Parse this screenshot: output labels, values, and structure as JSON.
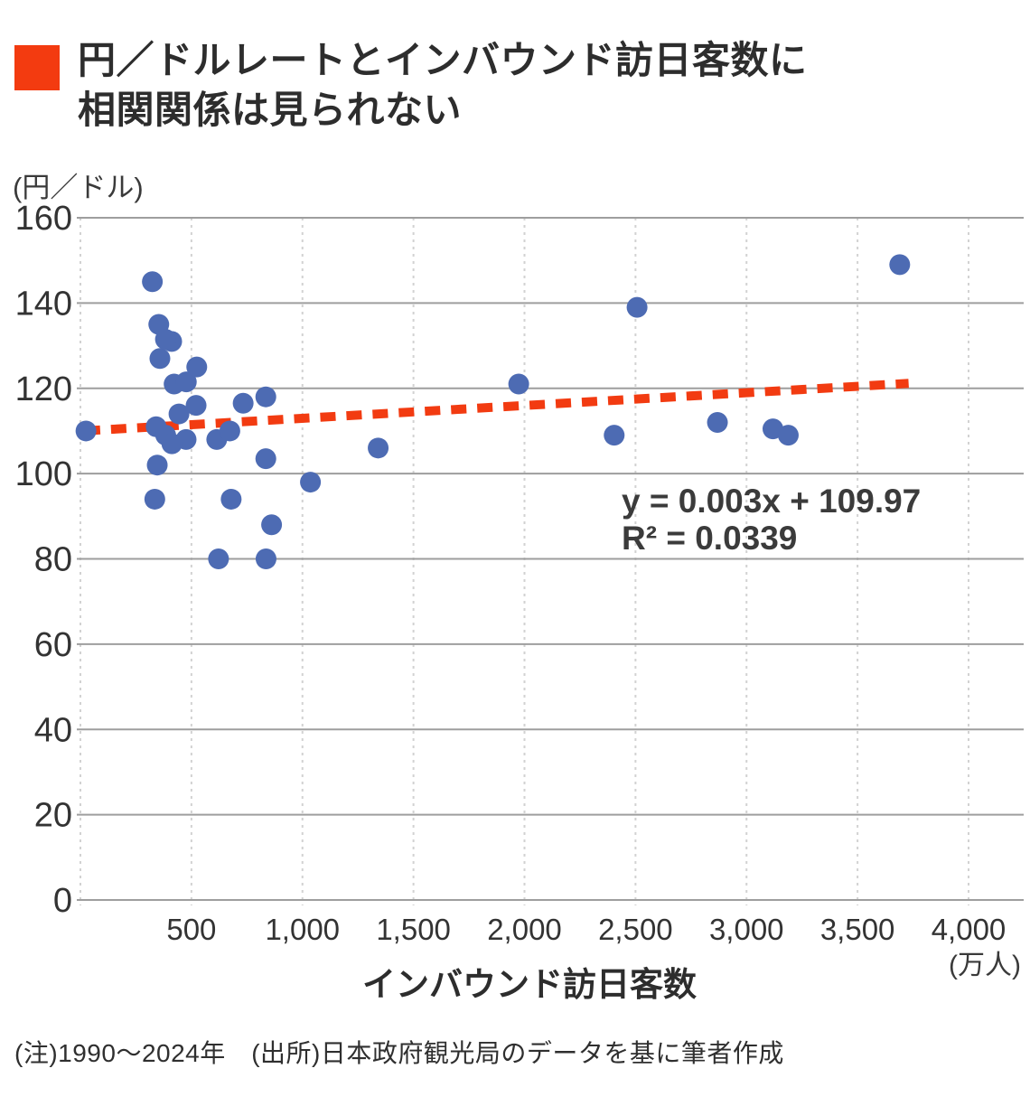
{
  "title": {
    "line1": "円／ドルレートとインバウンド訪日客数に",
    "line2": "相関関係は見られない"
  },
  "footnote": "(注)1990〜2024年　(出所)日本政府観光局のデータを基に筆者作成",
  "colors": {
    "accent_orange": "#f33b10",
    "dot_blue": "#4d6bb3",
    "trend_red": "#f23b11",
    "grid_solid": "#9e9e9e",
    "grid_dashed": "#d2d2d2",
    "text_dark": "#333333",
    "annotation_text": "#3b3b3b"
  },
  "chart_data": {
    "type": "scatter",
    "title": "円／ドルレートとインバウンド訪日客数に相関関係は見られない",
    "xlabel": "インバウンド訪日客数",
    "x_unit_label": "(万人)",
    "y_unit_label": "(円／ドル)",
    "xlim": [
      0,
      4000
    ],
    "ylim": [
      0,
      160
    ],
    "grid": true,
    "x_ticks": [
      {
        "value": 500,
        "label": "500"
      },
      {
        "value": 1000,
        "label": "1,000"
      },
      {
        "value": 1500,
        "label": "1,500"
      },
      {
        "value": 2000,
        "label": "2,000"
      },
      {
        "value": 2500,
        "label": "2,500"
      },
      {
        "value": 3000,
        "label": "3,000"
      },
      {
        "value": 3500,
        "label": "3,500"
      },
      {
        "value": 4000,
        "label": "4,000"
      }
    ],
    "y_ticks": [
      {
        "value": 0,
        "label": "0"
      },
      {
        "value": 20,
        "label": "20"
      },
      {
        "value": 40,
        "label": "40"
      },
      {
        "value": 60,
        "label": "60"
      },
      {
        "value": 80,
        "label": "80"
      },
      {
        "value": 100,
        "label": "100"
      },
      {
        "value": 120,
        "label": "120"
      },
      {
        "value": 140,
        "label": "140"
      },
      {
        "value": 160,
        "label": "160"
      }
    ],
    "points": [
      {
        "x": 324,
        "y": 145
      },
      {
        "x": 353,
        "y": 135
      },
      {
        "x": 358,
        "y": 127
      },
      {
        "x": 341,
        "y": 111
      },
      {
        "x": 346,
        "y": 102
      },
      {
        "x": 335,
        "y": 94
      },
      {
        "x": 384,
        "y": 109
      },
      {
        "x": 422,
        "y": 121
      },
      {
        "x": 411,
        "y": 131
      },
      {
        "x": 444,
        "y": 114
      },
      {
        "x": 476,
        "y": 108
      },
      {
        "x": 477,
        "y": 121.5
      },
      {
        "x": 524,
        "y": 125
      },
      {
        "x": 521,
        "y": 116
      },
      {
        "x": 614,
        "y": 108
      },
      {
        "x": 673,
        "y": 110
      },
      {
        "x": 733,
        "y": 116.5
      },
      {
        "x": 835,
        "y": 118
      },
      {
        "x": 835,
        "y": 103.5
      },
      {
        "x": 679,
        "y": 94
      },
      {
        "x": 861,
        "y": 88
      },
      {
        "x": 622,
        "y": 80
      },
      {
        "x": 836,
        "y": 80
      },
      {
        "x": 1036,
        "y": 98
      },
      {
        "x": 1341,
        "y": 106
      },
      {
        "x": 1974,
        "y": 121
      },
      {
        "x": 2404,
        "y": 109
      },
      {
        "x": 2869,
        "y": 112
      },
      {
        "x": 3119,
        "y": 110.5
      },
      {
        "x": 3188,
        "y": 109
      },
      {
        "x": 412,
        "y": 107
      },
      {
        "x": 25,
        "y": 110
      },
      {
        "x": 383,
        "y": 131.5
      },
      {
        "x": 2507,
        "y": 139
      },
      {
        "x": 3690,
        "y": 149
      }
    ],
    "trend": {
      "slope": 0.003,
      "intercept": 109.97,
      "x_start": 20,
      "x_end": 3730,
      "equation_label": "y = 0.003x + 109.97",
      "r2_label": "R² = 0.0339"
    },
    "legend": null
  }
}
